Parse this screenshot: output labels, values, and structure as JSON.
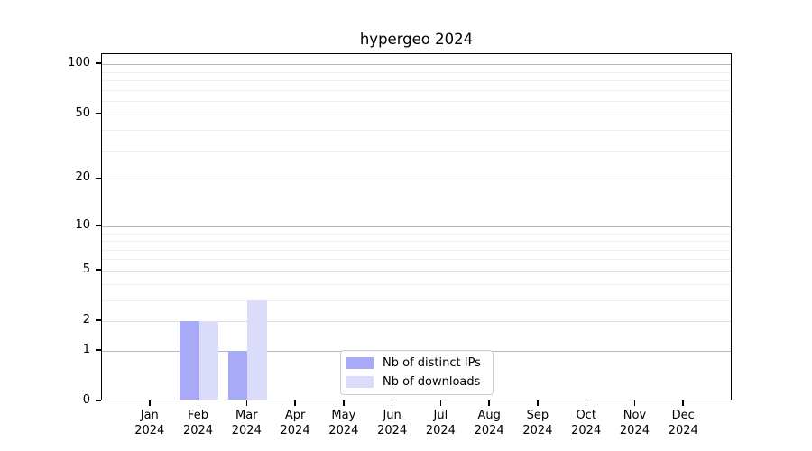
{
  "chart_data": {
    "type": "bar",
    "title": "hypergeo 2024",
    "categories": [
      "Jan",
      "Feb",
      "Mar",
      "Apr",
      "May",
      "Jun",
      "Jul",
      "Aug",
      "Sep",
      "Oct",
      "Nov",
      "Dec"
    ],
    "category_year_label": "2024",
    "series": [
      {
        "name": "Nb of distinct IPs",
        "color": "#a9aaf7",
        "values": [
          0,
          2,
          1,
          0,
          0,
          0,
          0,
          0,
          0,
          0,
          0,
          0
        ]
      },
      {
        "name": "Nb of downloads",
        "color": "#dbdcf9",
        "values": [
          0,
          2,
          3,
          0,
          0,
          0,
          0,
          0,
          0,
          0,
          0,
          0
        ]
      }
    ],
    "xlabel": "",
    "ylabel": "",
    "yscale": "log1p",
    "ylim": [
      0,
      115
    ],
    "yticks": [
      0,
      1,
      2,
      5,
      10,
      20,
      50,
      100
    ],
    "yticks_decade": [
      1,
      10,
      100
    ],
    "yticks_mid": [
      2,
      5,
      20,
      50
    ],
    "minor_gridlines": [
      3,
      4,
      6,
      7,
      8,
      9,
      30,
      40,
      60,
      70,
      80,
      90
    ],
    "grid": true,
    "legend_position": "lower-center"
  }
}
